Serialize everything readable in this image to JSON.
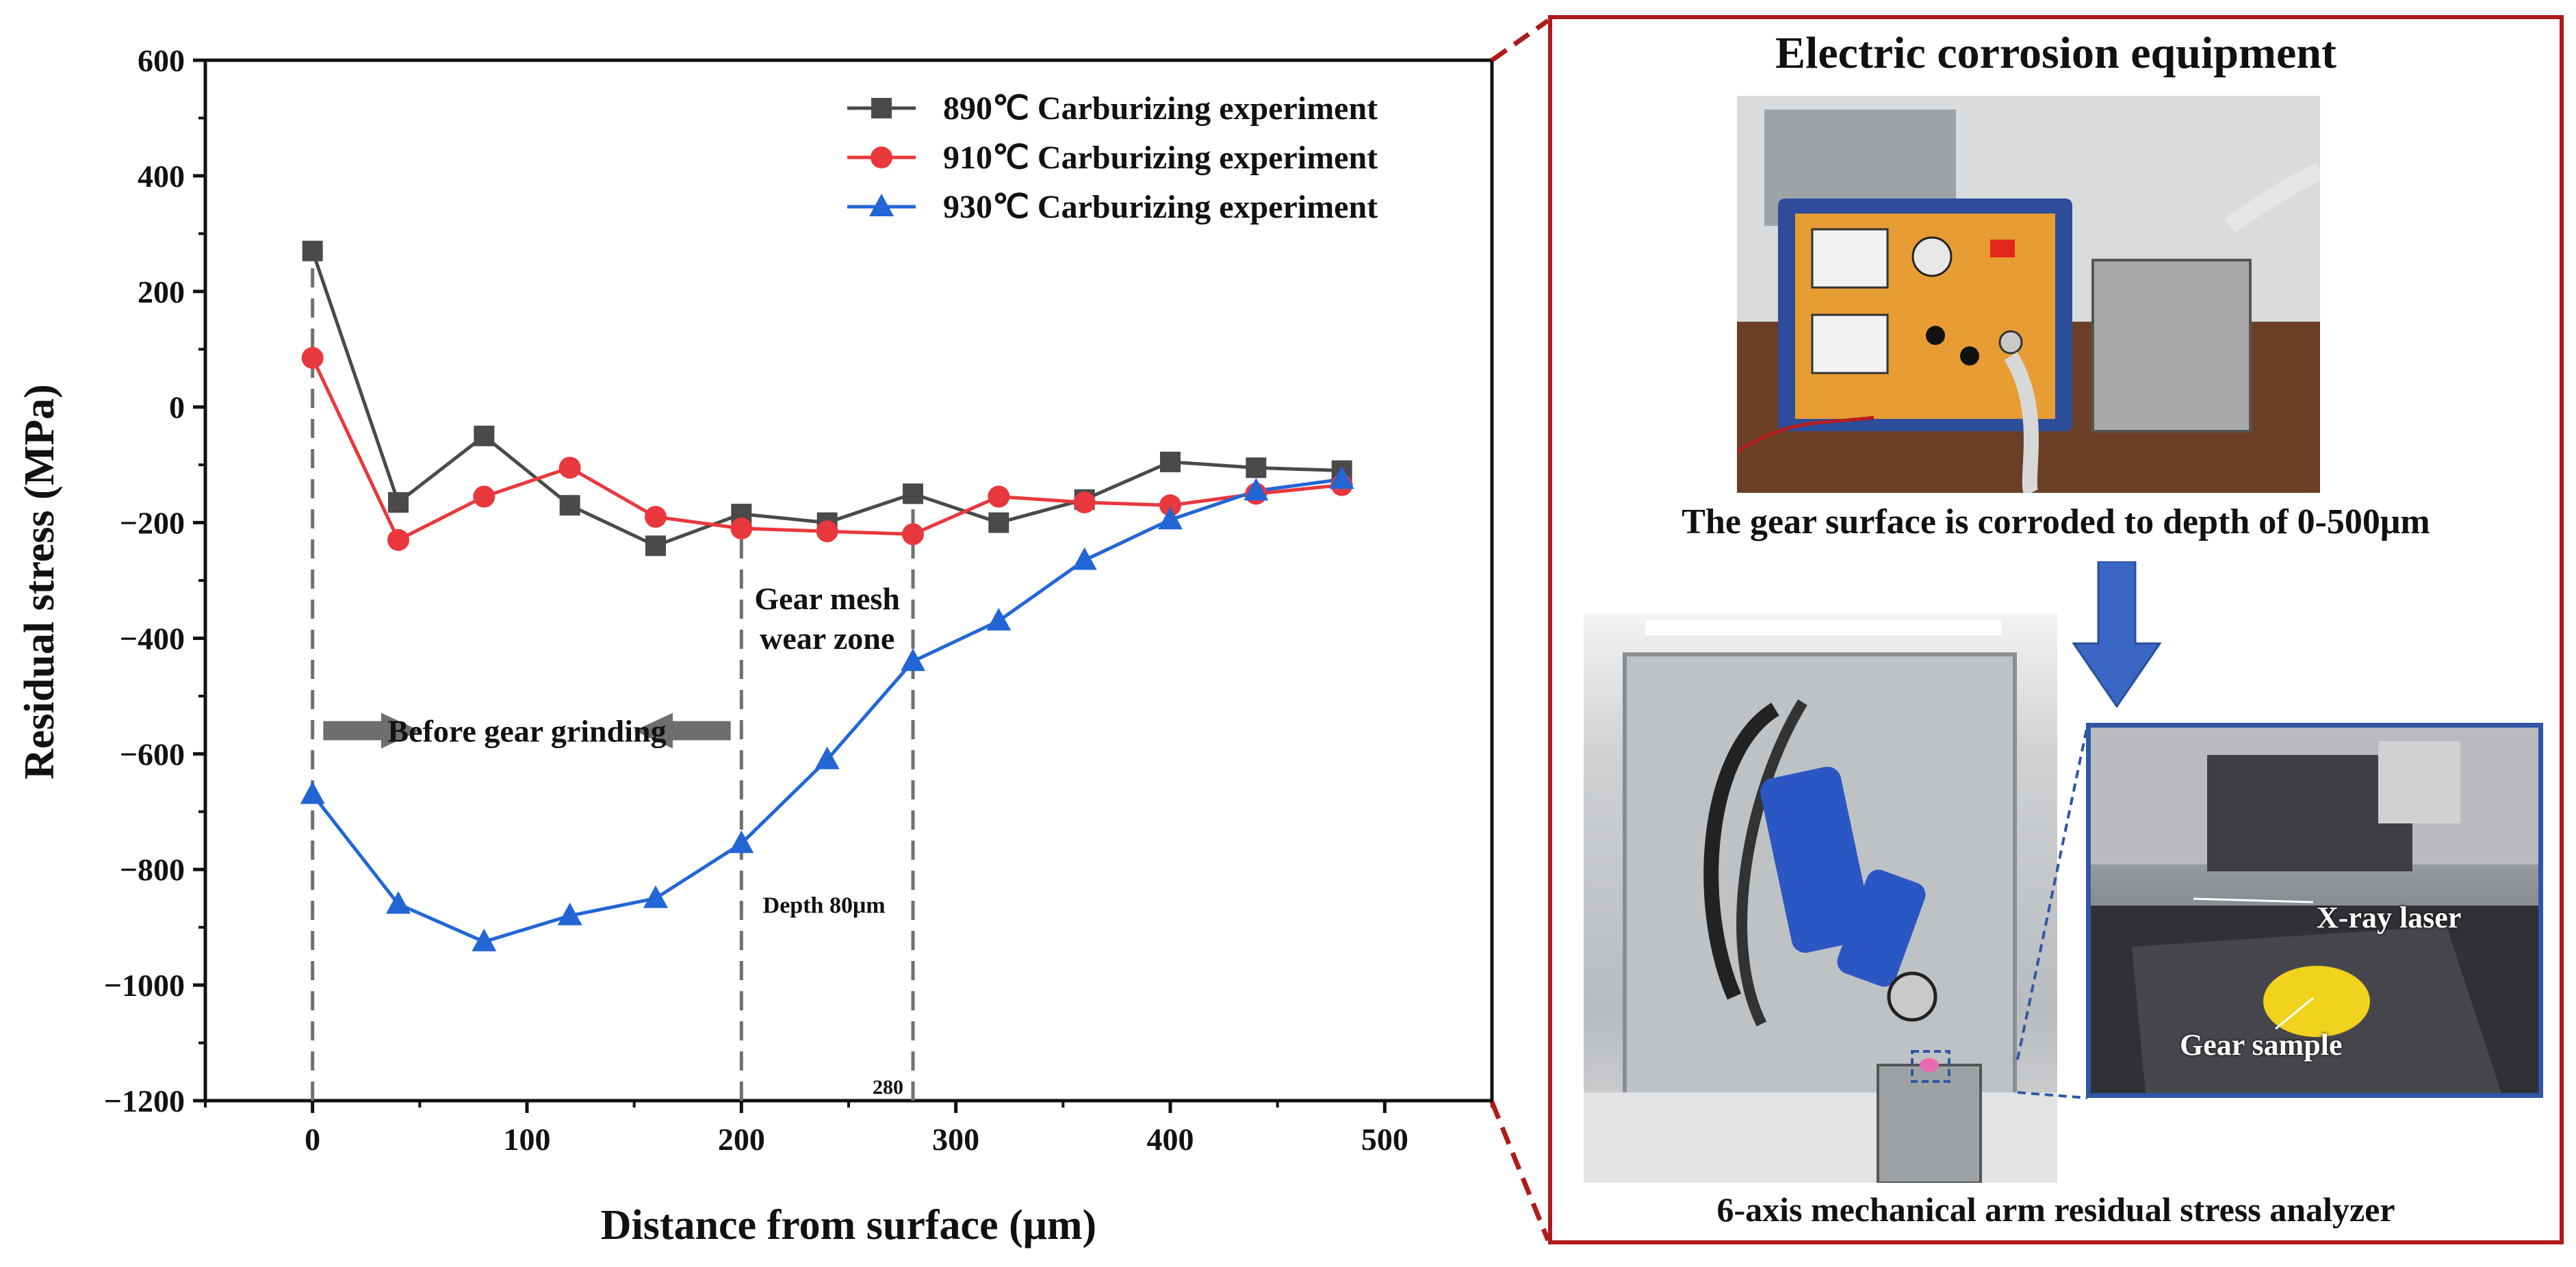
{
  "chart_data": {
    "type": "line",
    "xlabel": "Distance from surface (μm)",
    "ylabel": "Residual stress (MPa)",
    "xlim": [
      -50,
      550
    ],
    "ylim": [
      -1200,
      600
    ],
    "xticks": [
      0,
      100,
      200,
      300,
      400,
      500
    ],
    "yticks": [
      -1200,
      -1000,
      -800,
      -600,
      -400,
      -200,
      0,
      200,
      400,
      600
    ],
    "x": [
      0,
      40,
      80,
      120,
      160,
      200,
      240,
      280,
      320,
      360,
      400,
      440,
      480
    ],
    "series": [
      {
        "name": "890℃ Carburizing experiment",
        "color": "#4a4a4a",
        "marker": "square",
        "values": [
          270,
          -165,
          -50,
          -170,
          -240,
          -185,
          -200,
          -150,
          -200,
          -160,
          -95,
          -105,
          -110
        ]
      },
      {
        "name": "910℃ Carburizing experiment",
        "color": "#e8383d",
        "marker": "circle",
        "values": [
          85,
          -230,
          -155,
          -105,
          -190,
          -210,
          -215,
          -220,
          -155,
          -165,
          -170,
          -150,
          -135
        ]
      },
      {
        "name": "930℃ Carburizing experiment",
        "color": "#2266d6",
        "marker": "triangle",
        "values": [
          -670,
          -860,
          -925,
          -880,
          -850,
          -755,
          -610,
          -440,
          -370,
          -265,
          -195,
          -145,
          -125
        ]
      }
    ],
    "legend_position": "top-right",
    "grid": false,
    "vlines": [
      0,
      200,
      280
    ],
    "annotations": {
      "before_grinding": "Before gear grinding",
      "wear_zone_line1": "Gear mesh",
      "wear_zone_line2": "wear zone",
      "depth": "Depth 80μm",
      "mark_280": "280"
    }
  },
  "panel": {
    "equipment_title": "Electric corrosion equipment",
    "corrode_caption": "The gear surface is corroded to depth of 0-500μm",
    "analyzer_caption": "6-axis mechanical arm residual stress analyzer",
    "xray_label": "X-ray laser",
    "gear_label": "Gear sample",
    "frame_color": "#b01a1a",
    "arrow_color": "#3a66c4"
  }
}
